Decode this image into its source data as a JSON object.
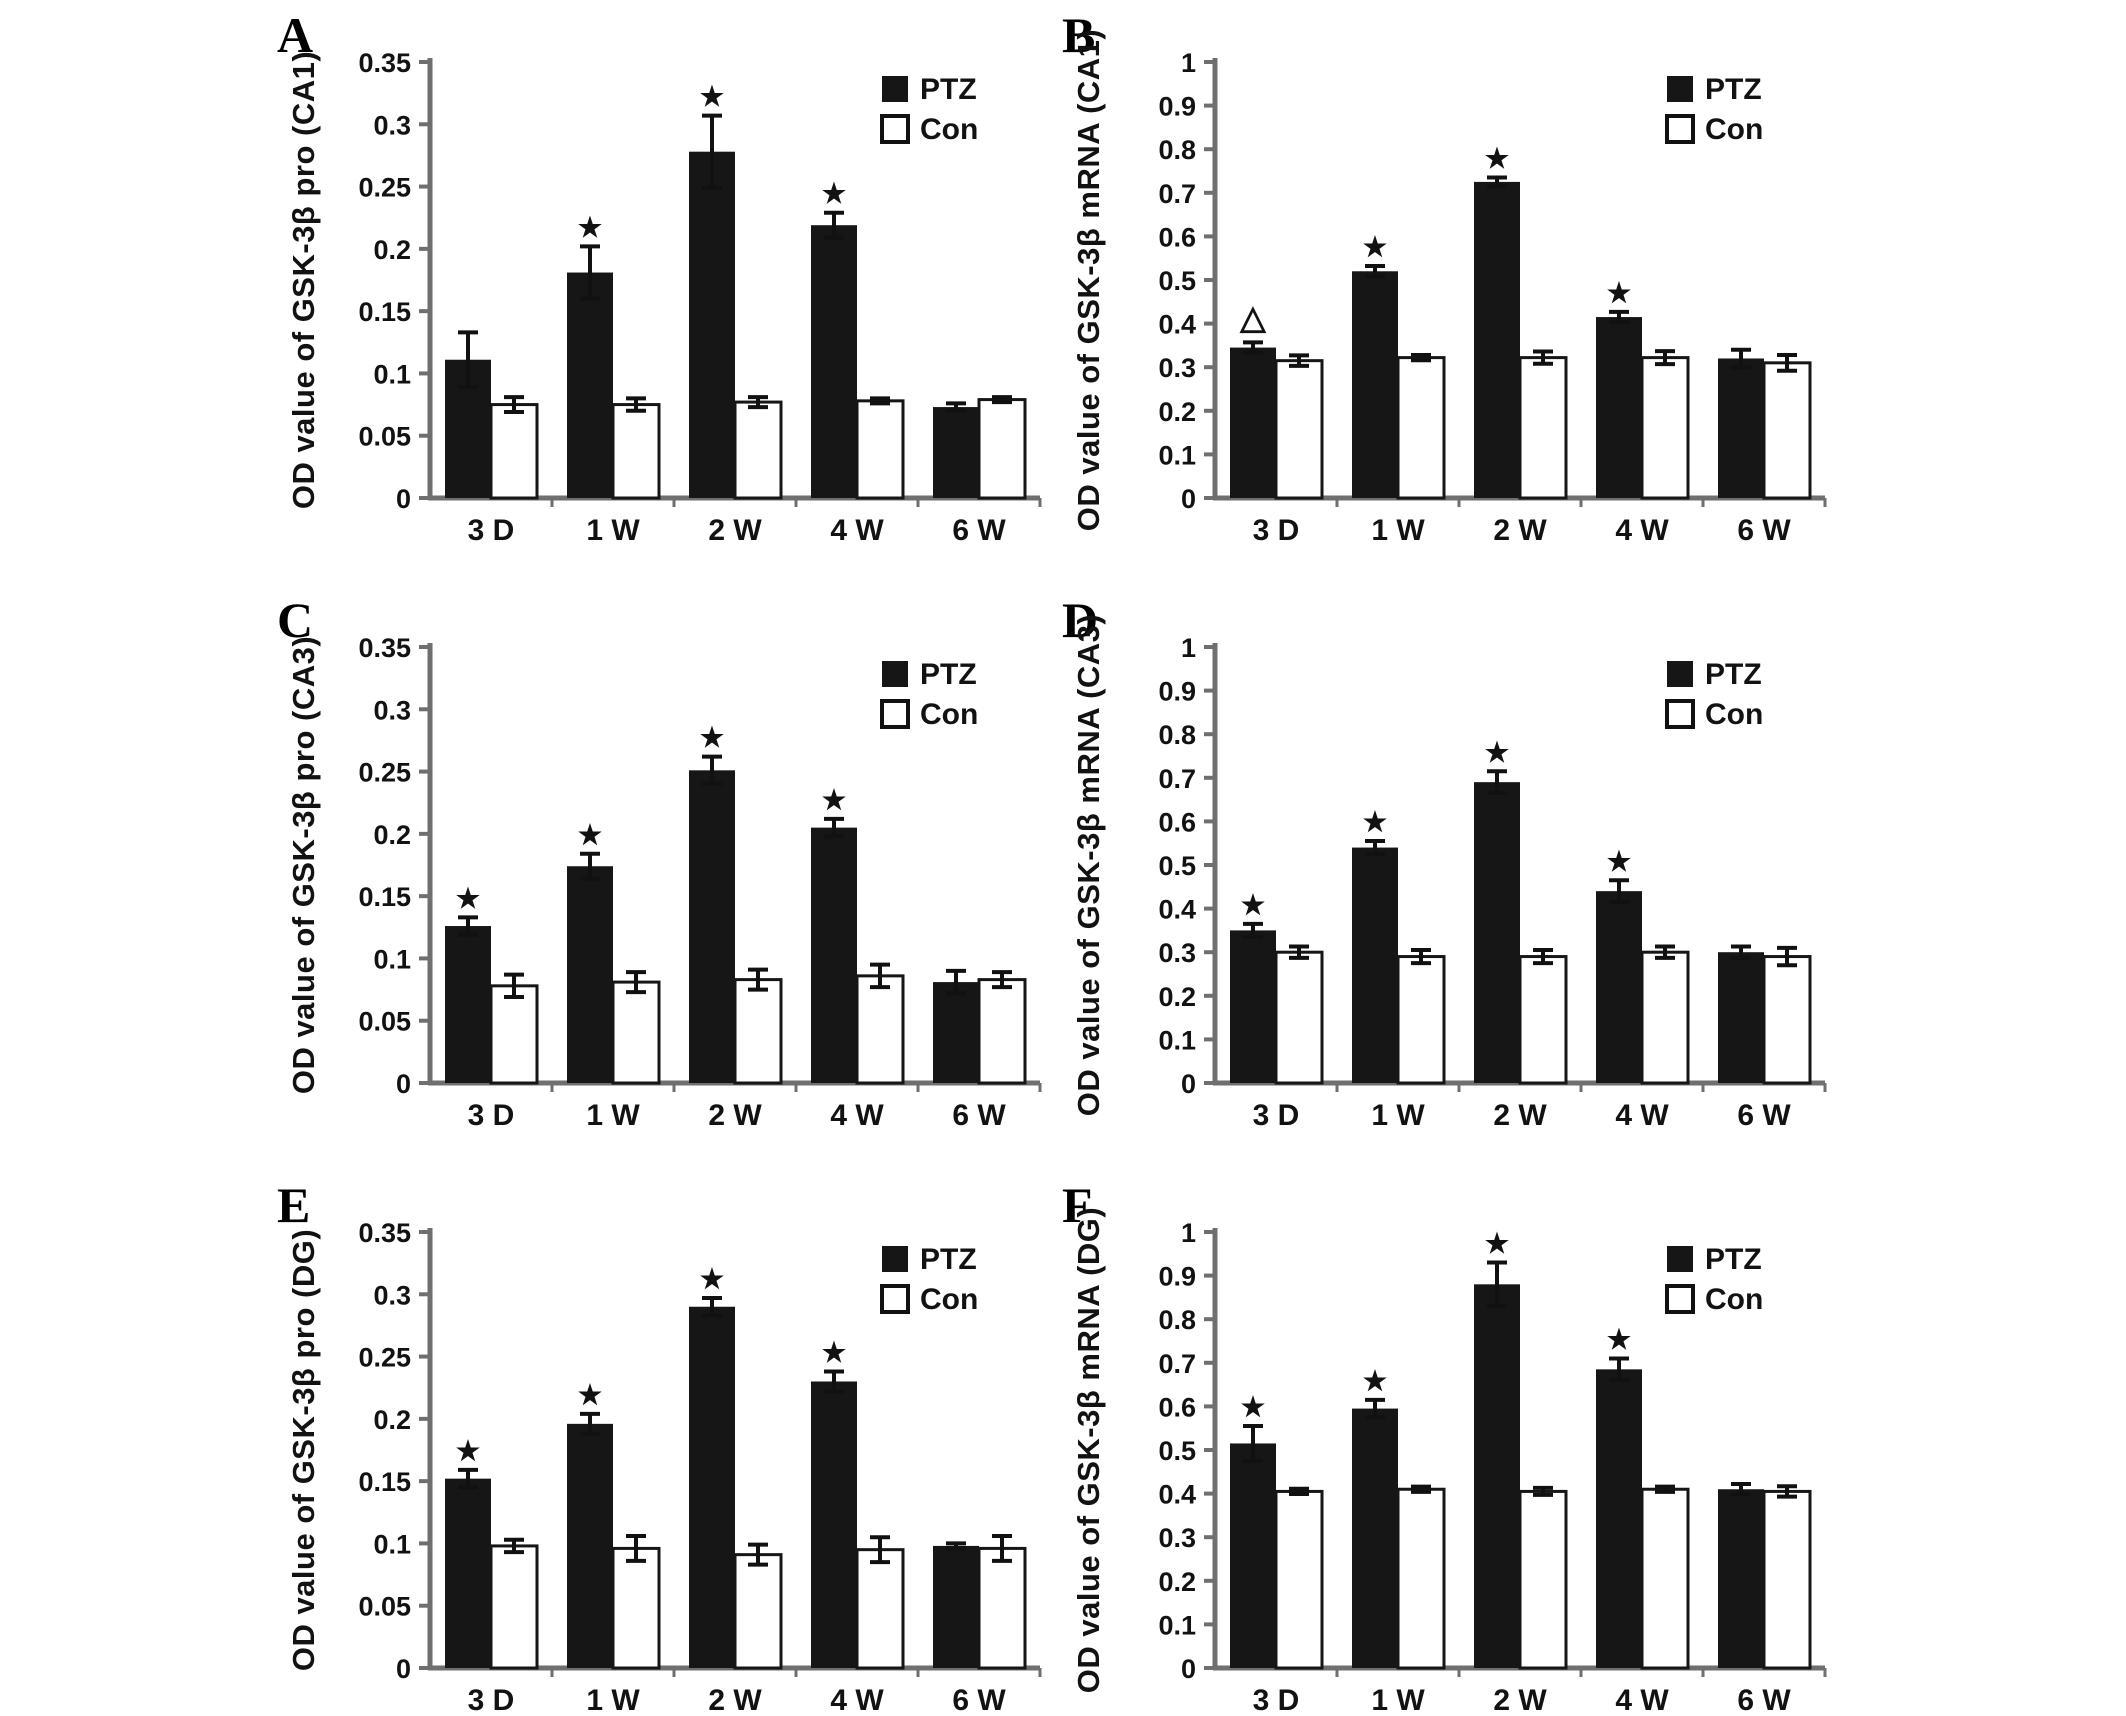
{
  "figure": {
    "background": "#ffffff",
    "colors": {
      "bar_black": "#161616",
      "bar_white": "#ffffff",
      "axis_gray": "#6f6f6f",
      "text_black": "#121212"
    },
    "legend": {
      "ptz_label": "PTZ",
      "con_label": "Con",
      "position": "top-right"
    }
  },
  "chart_data": [
    {
      "panel": "A",
      "type": "bar",
      "ylabel": "OD value of GSK-3β pro (CA1)",
      "xlabel": "",
      "ylim": [
        0,
        0.35
      ],
      "grid": false,
      "ytick_values": [
        0,
        0.05,
        0.1,
        0.15,
        0.2,
        0.25,
        0.3,
        0.35
      ],
      "ytick_labels": [
        "0",
        "0.05",
        "0.1",
        "0.15",
        "0.2",
        "0.25",
        "0.3",
        "0.35"
      ],
      "categories": [
        "3 D",
        "1 W",
        "2 W",
        "4 W",
        "6 W"
      ],
      "series": [
        {
          "name": "PTZ",
          "values": [
            0.111,
            0.181,
            0.278,
            0.219,
            0.073
          ],
          "errors": [
            0.022,
            0.021,
            0.029,
            0.01,
            0.003
          ],
          "sig": [
            "",
            "★",
            "★",
            "★",
            ""
          ]
        },
        {
          "name": "Con",
          "values": [
            0.075,
            0.075,
            0.077,
            0.078,
            0.079
          ],
          "errors": [
            0.006,
            0.005,
            0.004,
            0.002,
            0.002
          ],
          "sig": [
            "",
            "",
            "",
            "",
            ""
          ]
        }
      ]
    },
    {
      "panel": "B",
      "type": "bar",
      "ylabel": "OD value of GSK-3β mRNA (CA1)",
      "xlabel": "",
      "ylim": [
        0,
        1
      ],
      "grid": false,
      "ytick_values": [
        0,
        0.1,
        0.2,
        0.3,
        0.4,
        0.5,
        0.6,
        0.7,
        0.8,
        0.9,
        1
      ],
      "ytick_labels": [
        "0",
        "0.1",
        "0.2",
        "0.3",
        "0.4",
        "0.5",
        "0.6",
        "0.7",
        "0.8",
        "0.9",
        "1"
      ],
      "categories": [
        "3 D",
        "1 W",
        "2 W",
        "4 W",
        "6 W"
      ],
      "series": [
        {
          "name": "PTZ",
          "values": [
            0.345,
            0.52,
            0.725,
            0.415,
            0.32
          ],
          "errors": [
            0.012,
            0.012,
            0.01,
            0.012,
            0.02
          ],
          "sig": [
            "△",
            "★",
            "★",
            "★",
            ""
          ]
        },
        {
          "name": "Con",
          "values": [
            0.315,
            0.322,
            0.322,
            0.322,
            0.31
          ],
          "errors": [
            0.012,
            0.006,
            0.014,
            0.015,
            0.018
          ],
          "sig": [
            "",
            "",
            "",
            "",
            ""
          ]
        }
      ]
    },
    {
      "panel": "C",
      "type": "bar",
      "ylabel": "OD value of GSK-3β pro (CA3)",
      "xlabel": "",
      "ylim": [
        0,
        0.35
      ],
      "grid": false,
      "ytick_values": [
        0,
        0.05,
        0.1,
        0.15,
        0.2,
        0.25,
        0.3,
        0.35
      ],
      "ytick_labels": [
        "0",
        "0.05",
        "0.1",
        "0.15",
        "0.2",
        "0.25",
        "0.3",
        "0.35"
      ],
      "categories": [
        "3 D",
        "1 W",
        "2 W",
        "4 W",
        "6 W"
      ],
      "series": [
        {
          "name": "PTZ",
          "values": [
            0.126,
            0.174,
            0.251,
            0.205,
            0.081
          ],
          "errors": [
            0.007,
            0.01,
            0.011,
            0.007,
            0.009
          ],
          "sig": [
            "★",
            "★",
            "★",
            "★",
            ""
          ]
        },
        {
          "name": "Con",
          "values": [
            0.078,
            0.081,
            0.083,
            0.086,
            0.083
          ],
          "errors": [
            0.009,
            0.008,
            0.008,
            0.009,
            0.006
          ],
          "sig": [
            "",
            "",
            "",
            "",
            ""
          ]
        }
      ]
    },
    {
      "panel": "D",
      "type": "bar",
      "ylabel": "OD value of GSK-3β mRNA (CA3)",
      "xlabel": "",
      "ylim": [
        0,
        1
      ],
      "grid": false,
      "ytick_values": [
        0,
        0.1,
        0.2,
        0.3,
        0.4,
        0.5,
        0.6,
        0.7,
        0.8,
        0.9,
        1
      ],
      "ytick_labels": [
        "0",
        "0.1",
        "0.2",
        "0.3",
        "0.4",
        "0.5",
        "0.6",
        "0.7",
        "0.8",
        "0.9",
        "1"
      ],
      "categories": [
        "3 D",
        "1 W",
        "2 W",
        "4 W",
        "6 W"
      ],
      "series": [
        {
          "name": "PTZ",
          "values": [
            0.35,
            0.54,
            0.69,
            0.44,
            0.3
          ],
          "errors": [
            0.015,
            0.015,
            0.025,
            0.025,
            0.013
          ],
          "sig": [
            "★",
            "★",
            "★",
            "★",
            ""
          ]
        },
        {
          "name": "Con",
          "values": [
            0.3,
            0.29,
            0.29,
            0.3,
            0.29
          ],
          "errors": [
            0.013,
            0.015,
            0.015,
            0.013,
            0.02
          ],
          "sig": [
            "",
            "",
            "",
            "",
            ""
          ]
        }
      ]
    },
    {
      "panel": "E",
      "type": "bar",
      "ylabel": "OD value of GSK-3β pro (DG)",
      "xlabel": "",
      "ylim": [
        0,
        0.35
      ],
      "grid": false,
      "ytick_values": [
        0,
        0.05,
        0.1,
        0.15,
        0.2,
        0.25,
        0.3,
        0.35
      ],
      "ytick_labels": [
        "0",
        "0.05",
        "0.1",
        "0.15",
        "0.2",
        "0.25",
        "0.3",
        "0.35"
      ],
      "categories": [
        "3 D",
        "1 W",
        "2 W",
        "4 W",
        "6 W"
      ],
      "series": [
        {
          "name": "PTZ",
          "values": [
            0.152,
            0.196,
            0.29,
            0.23,
            0.098
          ],
          "errors": [
            0.007,
            0.008,
            0.007,
            0.008,
            0.002
          ],
          "sig": [
            "★",
            "★",
            "★",
            "★",
            ""
          ]
        },
        {
          "name": "Con",
          "values": [
            0.098,
            0.096,
            0.091,
            0.095,
            0.096
          ],
          "errors": [
            0.005,
            0.01,
            0.008,
            0.01,
            0.01
          ],
          "sig": [
            "",
            "",
            "",
            "",
            ""
          ]
        }
      ]
    },
    {
      "panel": "F",
      "type": "bar",
      "ylabel": "OD value of GSK-3β mRNA (DG)",
      "xlabel": "",
      "ylim": [
        0,
        1
      ],
      "grid": false,
      "ytick_values": [
        0,
        0.1,
        0.2,
        0.3,
        0.4,
        0.5,
        0.6,
        0.7,
        0.8,
        0.9,
        1
      ],
      "ytick_labels": [
        "0",
        "0.1",
        "0.2",
        "0.3",
        "0.4",
        "0.5",
        "0.6",
        "0.7",
        "0.8",
        "0.9",
        "1"
      ],
      "categories": [
        "3 D",
        "1 W",
        "2 W",
        "4 W",
        "6 W"
      ],
      "series": [
        {
          "name": "PTZ",
          "values": [
            0.515,
            0.595,
            0.88,
            0.685,
            0.41
          ],
          "errors": [
            0.04,
            0.02,
            0.05,
            0.025,
            0.012
          ],
          "sig": [
            "★",
            "★",
            "★",
            "★",
            ""
          ]
        },
        {
          "name": "Con",
          "values": [
            0.405,
            0.41,
            0.405,
            0.41,
            0.405
          ],
          "errors": [
            0.006,
            0.006,
            0.008,
            0.006,
            0.012
          ],
          "sig": [
            "",
            "",
            "",
            "",
            ""
          ]
        }
      ]
    }
  ]
}
